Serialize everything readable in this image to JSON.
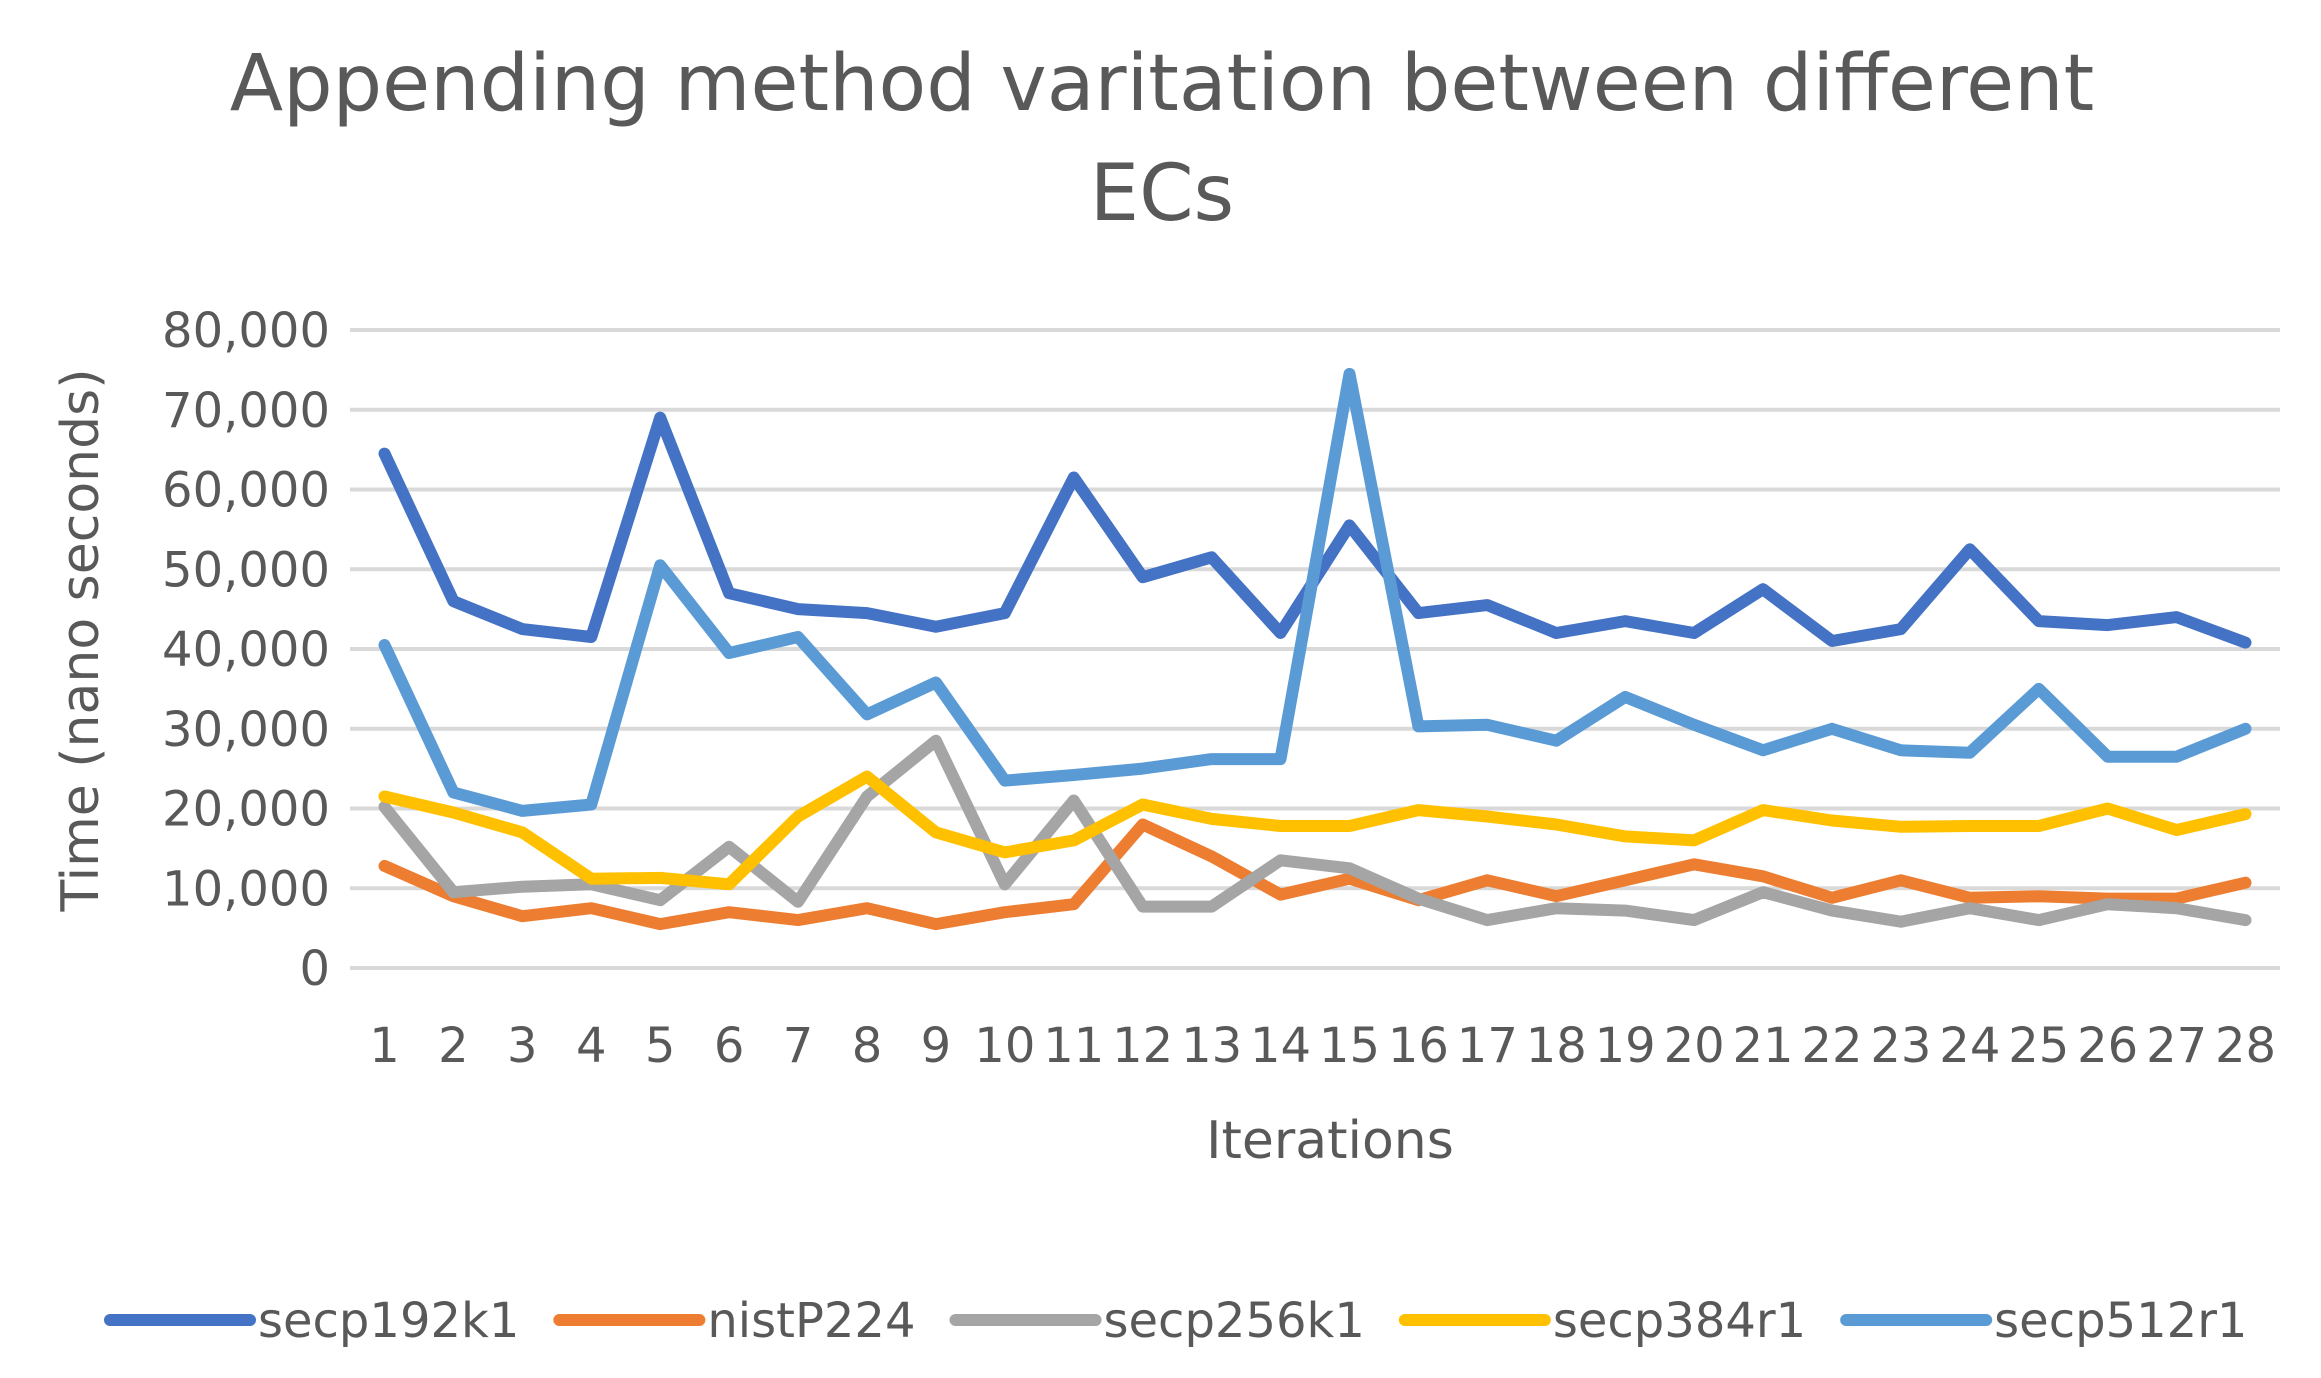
{
  "chart_data": {
    "type": "line",
    "title_lines": [
      "Appending method varitation between different",
      "ECs"
    ],
    "xlabel": "Iterations",
    "ylabel": "Time (nano seconds)",
    "ylim": [
      0,
      80000
    ],
    "yticks": [
      0,
      10000,
      20000,
      30000,
      40000,
      50000,
      60000,
      70000,
      80000
    ],
    "ytick_labels": [
      "0",
      "10,000",
      "20,000",
      "30,000",
      "40,000",
      "50,000",
      "60,000",
      "70,000",
      "80,000"
    ],
    "categories": [
      "1",
      "2",
      "3",
      "4",
      "5",
      "6",
      "7",
      "8",
      "9",
      "10",
      "11",
      "12",
      "13",
      "14",
      "15",
      "16",
      "17",
      "18",
      "19",
      "20",
      "21",
      "22",
      "23",
      "24",
      "25",
      "26",
      "27",
      "28"
    ],
    "grid": true,
    "legend_position": "bottom",
    "series": [
      {
        "name": "secp192k1",
        "color": "#4472C4",
        "values": [
          64500,
          46000,
          42500,
          41500,
          69000,
          47000,
          45000,
          44500,
          42800,
          44500,
          61500,
          49000,
          51500,
          42000,
          55500,
          44500,
          45500,
          42000,
          43500,
          42000,
          47500,
          41000,
          42500,
          52500,
          43500,
          43000,
          44000,
          40800
        ]
      },
      {
        "name": "nistP224",
        "color": "#ED7D31",
        "values": [
          12800,
          9000,
          6500,
          7500,
          5500,
          7000,
          6000,
          7500,
          5500,
          7000,
          8000,
          18000,
          14000,
          9200,
          11200,
          8500,
          11000,
          9000,
          11000,
          13000,
          11500,
          8800,
          11000,
          8800,
          9000,
          8700,
          8700,
          10700
        ]
      },
      {
        "name": "secp256k1",
        "color": "#A5A5A5",
        "values": [
          20200,
          9500,
          10200,
          10500,
          8500,
          15200,
          8300,
          21500,
          28500,
          10500,
          21000,
          7700,
          7700,
          13500,
          12500,
          8700,
          6000,
          7500,
          7200,
          6000,
          9500,
          7200,
          5800,
          7500,
          6000,
          8000,
          7500,
          6000
        ]
      },
      {
        "name": "secp384r1",
        "color": "#FFC000",
        "values": [
          21500,
          19500,
          17000,
          11200,
          11300,
          10500,
          19000,
          24000,
          17000,
          14500,
          16000,
          20500,
          18700,
          17800,
          17800,
          19800,
          19000,
          18000,
          16500,
          16000,
          19800,
          18500,
          17700,
          17800,
          17800,
          20000,
          17300,
          19300
        ]
      },
      {
        "name": "secp512r1",
        "color": "#5B9BD5",
        "values": [
          40500,
          22000,
          19700,
          20500,
          50500,
          39500,
          41500,
          31800,
          35800,
          23500,
          24200,
          25000,
          26200,
          26200,
          74500,
          30300,
          30500,
          28500,
          34000,
          30500,
          27300,
          30000,
          27300,
          27000,
          35000,
          26500,
          26500,
          30000
        ]
      }
    ]
  }
}
